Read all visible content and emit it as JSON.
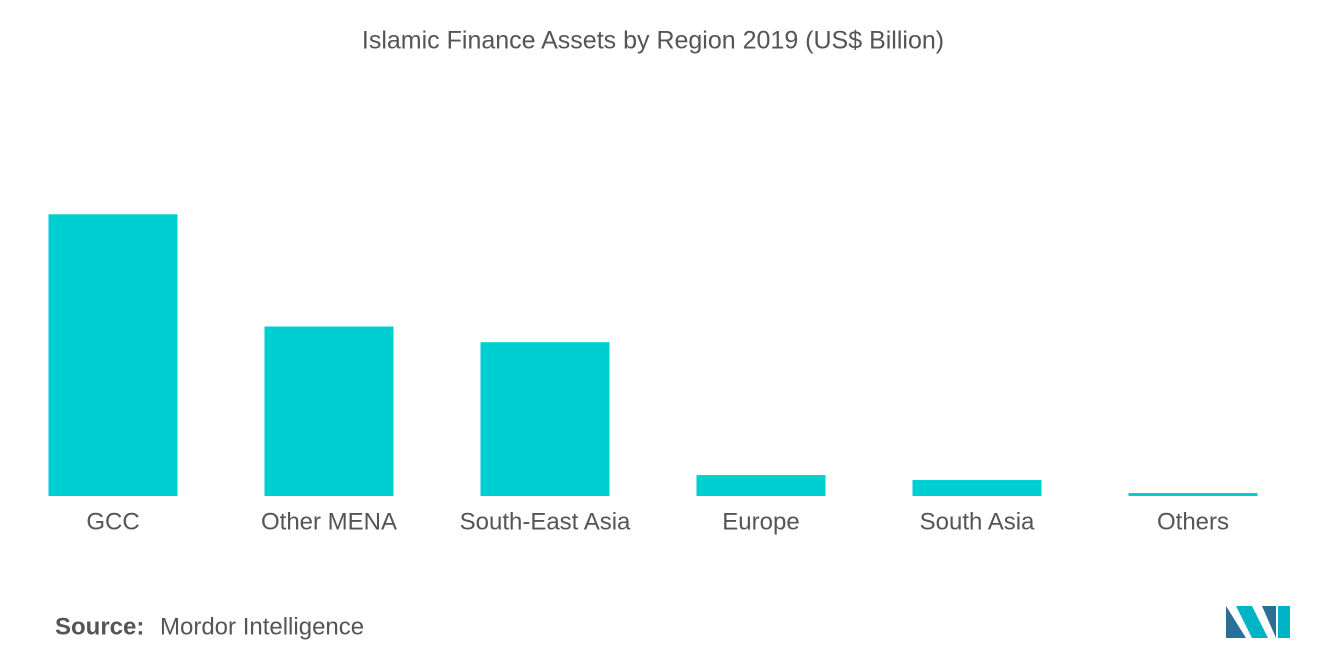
{
  "chart_data": {
    "type": "bar",
    "title": "Islamic Finance Assets by Region 2019  (US$ Billion)",
    "categories": [
      "GCC",
      "Other MENA",
      "South-East Asia",
      "Europe",
      "South Asia",
      "Others"
    ],
    "values": [
      1130,
      680,
      617,
      84,
      64,
      12
    ],
    "color": "#00cfd1",
    "ylim": [
      0,
      1400
    ],
    "grid": false
  },
  "footer": {
    "source_label": "Source:",
    "source": "Mordor Intelligence"
  }
}
